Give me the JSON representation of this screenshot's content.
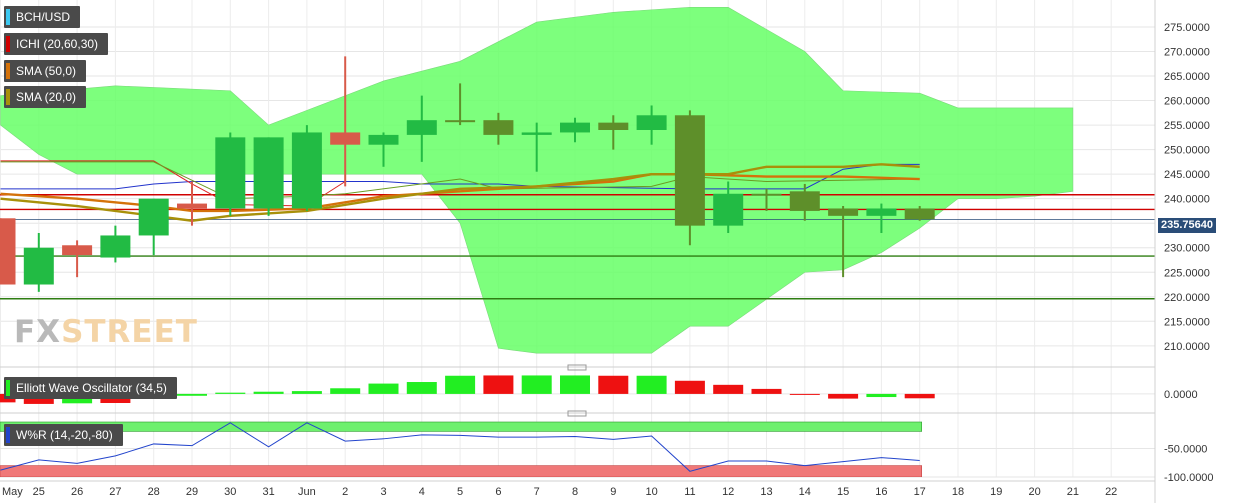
{
  "symbol": "BCH/USD",
  "indicators": {
    "ichi": "ICHI (20,60,30)",
    "sma50": "SMA (50,0)",
    "sma20": "SMA (20,0)",
    "ewo": "Elliott Wave Oscillator (34,5)",
    "wr": "W%R (14,-20,-80)"
  },
  "watermark": {
    "fx": "FX",
    "street": "STREET"
  },
  "last_price": "235.75640",
  "colors": {
    "up": "#22bb44",
    "down": "#d85a4a",
    "neutral": "#5e8f2a",
    "cloud": "#66ff66",
    "sma50": "#d4720a",
    "sma20": "#a8900a",
    "support": "#2e7d12",
    "resistance": "#d00000",
    "ewo_up": "#22ee22",
    "ewo_down": "#ee1111",
    "wr_line": "#2244cc"
  },
  "chart_data": [
    {
      "type": "candlestick",
      "x": [
        "May 24",
        "25",
        "26",
        "27",
        "28",
        "29",
        "30",
        "31",
        "Jun 1",
        "2",
        "3",
        "4",
        "5",
        "6",
        "7",
        "8",
        "9",
        "10",
        "11",
        "12",
        "13",
        "14",
        "15",
        "16",
        "17"
      ],
      "ohlc": [
        [
          236.0,
          236.0,
          222.5,
          222.5
        ],
        [
          222.5,
          233.0,
          221.0,
          230.0
        ],
        [
          230.5,
          231.5,
          224.0,
          228.5
        ],
        [
          228.0,
          234.5,
          227.0,
          232.5
        ],
        [
          232.5,
          240.0,
          228.5,
          240.0
        ],
        [
          239.0,
          243.5,
          234.5,
          238.0
        ],
        [
          238.0,
          253.5,
          236.5,
          252.5
        ],
        [
          252.5,
          252.5,
          236.5,
          238.0
        ],
        [
          238.0,
          255.0,
          237.5,
          253.5
        ],
        [
          253.5,
          269.0,
          242.5,
          251.0
        ],
        [
          251.0,
          253.5,
          246.5,
          253.0
        ],
        [
          253.0,
          261.0,
          247.5,
          256.0
        ],
        [
          256.0,
          263.5,
          255.0,
          256.0
        ],
        [
          256.0,
          257.5,
          251.0,
          253.0
        ],
        [
          253.0,
          255.5,
          245.5,
          253.5
        ],
        [
          253.5,
          256.5,
          251.5,
          255.5
        ],
        [
          255.5,
          257.0,
          250.0,
          254.0
        ],
        [
          254.0,
          259.0,
          251.0,
          257.0
        ],
        [
          257.0,
          258.0,
          230.5,
          234.5
        ],
        [
          234.5,
          243.5,
          233.0,
          241.0
        ],
        [
          241.0,
          242.0,
          237.5,
          241.0
        ],
        [
          241.5,
          243.0,
          235.5,
          237.5
        ],
        [
          238.0,
          238.5,
          224.0,
          236.5
        ],
        [
          236.5,
          239.0,
          233.0,
          238.0
        ],
        [
          238.0,
          238.5,
          235.5,
          235.8
        ]
      ],
      "candle_colors": [
        "down",
        "up",
        "down",
        "up",
        "up",
        "down",
        "up",
        "up",
        "up",
        "down",
        "up",
        "up",
        "neutral",
        "neutral",
        "up",
        "up",
        "neutral",
        "up",
        "neutral",
        "up",
        "neutral",
        "neutral",
        "neutral",
        "up",
        "neutral"
      ],
      "x_ticks": [
        "May",
        "25",
        "26",
        "27",
        "28",
        "29",
        "30",
        "31",
        "Jun",
        "2",
        "3",
        "4",
        "5",
        "6",
        "7",
        "8",
        "9",
        "10",
        "11",
        "12",
        "13",
        "14",
        "15",
        "16",
        "17",
        "18",
        "19",
        "20",
        "21",
        "22"
      ],
      "y_ticks": [
        "210.0000",
        "215.0000",
        "220.0000",
        "225.0000",
        "230.0000",
        "235.0000",
        "240.0000",
        "245.0000",
        "250.0000",
        "255.0000",
        "260.0000",
        "265.0000",
        "270.0000",
        "275.0000"
      ],
      "ylim": [
        206.5,
        280.5
      ],
      "horizontal_levels": {
        "resistance": [
          240.8,
          237.8
        ],
        "support": [
          228.3,
          219.6
        ],
        "last": 235.76
      },
      "cloud_upper": [
        [
          0,
          261.0
        ],
        [
          3,
          263.0
        ],
        [
          6,
          262.0
        ],
        [
          7,
          255.0
        ],
        [
          8,
          258.0
        ],
        [
          10,
          264.0
        ],
        [
          12,
          268.0
        ],
        [
          13,
          272.0
        ],
        [
          14,
          276.0
        ],
        [
          16,
          278.0
        ],
        [
          18,
          279.0
        ],
        [
          19,
          279.0
        ],
        [
          21,
          270.0
        ],
        [
          22,
          262.0
        ],
        [
          24,
          261.5
        ],
        [
          25,
          258.5
        ],
        [
          28,
          258.5
        ]
      ],
      "cloud_lower": [
        [
          0,
          255.0
        ],
        [
          1,
          249.0
        ],
        [
          2,
          245.0
        ],
        [
          10,
          245.0
        ],
        [
          11,
          245.0
        ],
        [
          12,
          235.0
        ],
        [
          13,
          209.5
        ],
        [
          14,
          208.5
        ],
        [
          17,
          208.5
        ],
        [
          18,
          214.0
        ],
        [
          19,
          214.0
        ],
        [
          21,
          225.0
        ],
        [
          22,
          225.5
        ],
        [
          23,
          229.0
        ],
        [
          24,
          234.0
        ],
        [
          25,
          240.0
        ],
        [
          26,
          240.0
        ],
        [
          27,
          240.5
        ],
        [
          28,
          241.5
        ]
      ],
      "sma50": [
        [
          0,
          241.0
        ],
        [
          2,
          240.0
        ],
        [
          4,
          238.5
        ],
        [
          5,
          237.5
        ],
        [
          6,
          237.5
        ],
        [
          8,
          238.0
        ],
        [
          10,
          240.5
        ],
        [
          12,
          241.5
        ],
        [
          14,
          242.5
        ],
        [
          16,
          243.5
        ],
        [
          17,
          245.0
        ],
        [
          18,
          245.0
        ],
        [
          20,
          244.5
        ],
        [
          22,
          244.5
        ],
        [
          24,
          244.0
        ]
      ],
      "sma20": [
        [
          0,
          240.0
        ],
        [
          2,
          238.5
        ],
        [
          4,
          236.5
        ],
        [
          5,
          235.5
        ],
        [
          6,
          236.5
        ],
        [
          8,
          237.5
        ],
        [
          10,
          240.0
        ],
        [
          12,
          242.0
        ],
        [
          14,
          242.5
        ],
        [
          16,
          244.0
        ],
        [
          17,
          245.0
        ],
        [
          19,
          245.0
        ],
        [
          20,
          246.5
        ],
        [
          22,
          246.5
        ],
        [
          23,
          247.0
        ],
        [
          24,
          246.5
        ]
      ],
      "ichimoku_lines": {
        "blue": [
          [
            0,
            242.0
          ],
          [
            3,
            242.0
          ],
          [
            4,
            243.0
          ],
          [
            5,
            243.5
          ],
          [
            8,
            243.5
          ],
          [
            10,
            243.5
          ],
          [
            11,
            243.0
          ],
          [
            13,
            243.0
          ],
          [
            14,
            242.5
          ],
          [
            18,
            242.0
          ],
          [
            19,
            242.0
          ],
          [
            21,
            242.0
          ],
          [
            22,
            246.0
          ],
          [
            23,
            247.0
          ],
          [
            24,
            247.0
          ]
        ],
        "red": [
          [
            0,
            247.7
          ],
          [
            4,
            247.7
          ],
          [
            5,
            243.0
          ],
          [
            6,
            238.8
          ],
          [
            8,
            238.5
          ],
          [
            9,
            243.5
          ]
        ],
        "olive": [
          [
            0,
            247.5
          ],
          [
            4,
            247.5
          ],
          [
            6,
            240.0
          ],
          [
            8,
            240.5
          ],
          [
            9,
            241.0
          ],
          [
            12,
            244.0
          ],
          [
            13,
            242.0
          ],
          [
            17,
            242.5
          ],
          [
            18,
            244.5
          ],
          [
            20,
            243.5
          ],
          [
            24,
            244.0
          ]
        ]
      }
    },
    {
      "type": "bar",
      "name": "Elliott Wave Oscillator",
      "x": [
        "May 24",
        "25",
        "26",
        "27",
        "28",
        "29",
        "30",
        "31",
        "Jun 1",
        "2",
        "3",
        "4",
        "5",
        "6",
        "7",
        "8",
        "9",
        "10",
        "11",
        "12",
        "13",
        "14",
        "15",
        "16",
        "17"
      ],
      "values": [
        -2.7,
        -3.2,
        -3.0,
        -2.9,
        -1.6,
        -0.6,
        0.4,
        0.7,
        0.9,
        1.8,
        3.3,
        3.8,
        5.8,
        5.9,
        5.9,
        5.9,
        5.8,
        5.8,
        4.2,
        2.9,
        1.6,
        -0.2,
        -1.5,
        -1.0,
        -1.4
      ],
      "colors": [
        "down",
        "down",
        "up",
        "down",
        "up",
        "up",
        "up",
        "up",
        "up",
        "up",
        "up",
        "up",
        "up",
        "down",
        "up",
        "up",
        "down",
        "up",
        "down",
        "down",
        "down",
        "down",
        "down",
        "up",
        "down"
      ],
      "y_ticks": [
        "0.0000"
      ],
      "ylim": [
        -4.5,
        7.0
      ]
    },
    {
      "type": "line",
      "name": "Williams %R",
      "x": [
        "May 24",
        "25",
        "26",
        "27",
        "28",
        "29",
        "30",
        "31",
        "Jun 1",
        "2",
        "3",
        "4",
        "5",
        "6",
        "7",
        "8",
        "9",
        "10",
        "11",
        "12",
        "13",
        "14",
        "15",
        "16",
        "17"
      ],
      "values": [
        -88,
        -70,
        -76,
        -63,
        -42,
        -45,
        -5,
        -47,
        -5,
        -37,
        -33,
        -26,
        -27,
        -30,
        -30,
        -29,
        -34,
        -28,
        -90,
        -72,
        -72,
        -80,
        -73,
        -66,
        -71
      ],
      "y_ticks": [
        "-50.0000",
        "-100.0000"
      ],
      "ylim": [
        -100,
        0
      ],
      "overbought": -20,
      "oversold": -80
    }
  ]
}
